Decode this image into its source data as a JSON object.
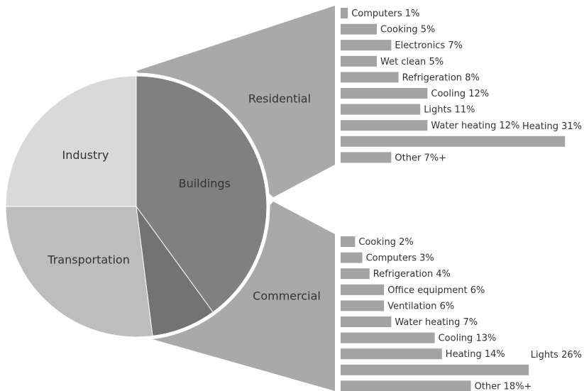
{
  "chart_data": [
    {
      "type": "pie",
      "categories": [
        "Buildings",
        null,
        "Transportation",
        "Industry"
      ],
      "values": [
        40,
        8,
        27,
        25
      ],
      "colors": [
        "#808080",
        "#737373",
        "#bdbdbd",
        "#d9d9d9"
      ]
    },
    {
      "type": "bar",
      "title": "Residential",
      "categories": [
        "Computers",
        "Cooking",
        "Electronics",
        "Wet clean",
        "Refrigeration",
        "Cooling",
        "Lights",
        "Water heating",
        "Heating",
        "Other"
      ],
      "values": [
        1,
        5,
        7,
        5,
        8,
        12,
        11,
        12,
        31,
        7
      ],
      "value_labels": [
        "1%",
        "5%",
        "7%",
        "5%",
        "8%",
        "12%",
        "11%",
        "12%",
        "31%",
        "7%+"
      ],
      "color": "#a3a3a3"
    },
    {
      "type": "bar",
      "title": "Commercial",
      "categories": [
        "Cooking",
        "Computers",
        "Refrigeration",
        "Office equipment",
        "Ventilation",
        "Water heating",
        "Cooling",
        "Heating",
        "Lights",
        "Other"
      ],
      "values": [
        2,
        3,
        4,
        6,
        6,
        7,
        13,
        14,
        26,
        18
      ],
      "value_labels": [
        "2%",
        "3%",
        "4%",
        "6%",
        "6%",
        "7%",
        "13%",
        "14%",
        "26%",
        "18%+"
      ],
      "color": "#a3a3a3"
    }
  ]
}
